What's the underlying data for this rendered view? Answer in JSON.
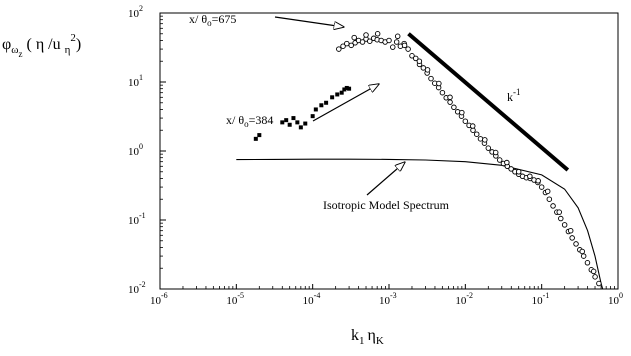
{
  "chart_data": {
    "type": "scatter",
    "x_axis": {
      "scale": "log",
      "range": [
        1e-06,
        1
      ],
      "tick_base": "10",
      "tick_exponents": [
        "-6",
        "-5",
        "-4",
        "-3",
        "-2",
        "-1",
        "0"
      ],
      "label": {
        "main": "k",
        "sub1": "1",
        "mid": "η",
        "sub2": "K"
      }
    },
    "y_axis": {
      "scale": "log",
      "range": [
        0.01,
        100
      ],
      "tick_base": "10",
      "tick_exponents": [
        "-2",
        "-1",
        "0",
        "1",
        "2"
      ],
      "label": {
        "main": "φ",
        "sub1": "ω",
        "sub2": "z",
        "rest1": " ( η /u ",
        "sub3": "η",
        "sup": "2",
        "rest2": ")"
      }
    },
    "grid": false,
    "legend": "none",
    "annotations": {
      "x675": {
        "pre": "x/ θ",
        "sub": "o",
        "post": "=675"
      },
      "x384": {
        "pre": "x/ θ",
        "sub": "o",
        "post": "=384"
      },
      "slope": {
        "pre": "k",
        "sup": "-1"
      },
      "model": {
        "text": "Isotropic Model Spectrum"
      }
    },
    "series": [
      {
        "marker": "open-circle",
        "points": [
          [
            0.00022,
            30
          ],
          [
            0.00025,
            33
          ],
          [
            0.00028,
            36
          ],
          [
            0.00032,
            34
          ],
          [
            0.00036,
            37
          ],
          [
            0.0004,
            40
          ],
          [
            0.00045,
            38
          ],
          [
            0.0005,
            42
          ],
          [
            0.00056,
            39
          ],
          [
            0.00063,
            43
          ],
          [
            0.0007,
            41
          ],
          [
            0.00079,
            40
          ],
          [
            0.00089,
            38
          ],
          [
            0.001,
            40
          ],
          [
            0.00112,
            32
          ],
          [
            0.00126,
            38
          ],
          [
            0.00141,
            33
          ],
          [
            0.00158,
            36
          ],
          [
            0.00178,
            30
          ],
          [
            0.002,
            24
          ],
          [
            0.00224,
            22
          ],
          [
            0.00251,
            18
          ],
          [
            0.00282,
            16
          ],
          [
            0.00316,
            13.5
          ],
          [
            0.00355,
            11.2
          ],
          [
            0.00398,
            9.6
          ],
          [
            0.00447,
            8.3
          ],
          [
            0.00501,
            7
          ],
          [
            0.00562,
            5.9
          ],
          [
            0.00631,
            5.1
          ],
          [
            0.00708,
            4.3
          ],
          [
            0.00794,
            3.7
          ],
          [
            0.00891,
            3.2
          ],
          [
            0.01,
            2.7
          ],
          [
            0.0112,
            2.35
          ],
          [
            0.0126,
            2
          ],
          [
            0.0141,
            1.75
          ],
          [
            0.0158,
            1.5
          ],
          [
            0.0178,
            1.3
          ],
          [
            0.02,
            1.1
          ],
          [
            0.0224,
            0.97
          ],
          [
            0.0251,
            0.85
          ],
          [
            0.0282,
            0.74
          ],
          [
            0.0316,
            0.66
          ],
          [
            0.0355,
            0.6
          ],
          [
            0.0398,
            0.55
          ],
          [
            0.0447,
            0.5
          ],
          [
            0.0501,
            0.46
          ],
          [
            0.0562,
            0.43
          ],
          [
            0.0631,
            0.41
          ],
          [
            0.0708,
            0.4
          ],
          [
            0.0794,
            0.38
          ],
          [
            0.0891,
            0.35
          ],
          [
            0.1,
            0.3
          ],
          [
            0.112,
            0.25
          ],
          [
            0.126,
            0.2
          ],
          [
            0.141,
            0.16
          ],
          [
            0.158,
            0.13
          ],
          [
            0.178,
            0.105
          ],
          [
            0.2,
            0.085
          ],
          [
            0.224,
            0.068
          ],
          [
            0.251,
            0.055
          ],
          [
            0.282,
            0.045
          ],
          [
            0.316,
            0.037
          ],
          [
            0.355,
            0.03
          ],
          [
            0.398,
            0.024
          ],
          [
            0.447,
            0.019
          ],
          [
            0.501,
            0.015
          ],
          [
            0.562,
            0.012
          ],
          [
            0.00035,
            44
          ],
          [
            0.0005,
            48
          ],
          [
            0.00071,
            50
          ],
          [
            0.0013,
            46
          ],
          [
            0.0016,
            34
          ],
          [
            0.0025,
            20
          ],
          [
            0.0032,
            15
          ],
          [
            0.0045,
            9.5
          ],
          [
            0.0063,
            6
          ],
          [
            0.009,
            3.6
          ],
          [
            0.0125,
            2.3
          ],
          [
            0.018,
            1.45
          ],
          [
            0.025,
            0.95
          ],
          [
            0.035,
            0.68
          ],
          [
            0.05,
            0.5
          ],
          [
            0.07,
            0.43
          ],
          [
            0.09,
            0.37
          ],
          [
            0.12,
            0.26
          ],
          [
            0.17,
            0.13
          ],
          [
            0.24,
            0.07
          ],
          [
            0.34,
            0.035
          ],
          [
            0.48,
            0.018
          ]
        ]
      },
      {
        "marker": "filled-square",
        "points": [
          [
            1.8e-05,
            1.5
          ],
          [
            2e-05,
            1.7
          ],
          [
            4e-05,
            2.6
          ],
          [
            4.5e-05,
            2.8
          ],
          [
            5e-05,
            2.4
          ],
          [
            5.6e-05,
            3
          ],
          [
            6.3e-05,
            2.6
          ],
          [
            7e-05,
            2.2
          ],
          [
            8e-05,
            2.5
          ],
          [
            0.0001,
            3.2
          ],
          [
            0.00011,
            4
          ],
          [
            0.00013,
            4.6
          ],
          [
            0.00015,
            5
          ],
          [
            0.00018,
            6
          ],
          [
            0.00021,
            6.6
          ],
          [
            0.00024,
            7
          ],
          [
            0.00026,
            7.8
          ],
          [
            0.00028,
            8.2
          ],
          [
            0.0003,
            8
          ]
        ]
      }
    ],
    "isotropic_model_curve": [
      [
        1e-05,
        0.75
      ],
      [
        3e-05,
        0.755
      ],
      [
        0.0001,
        0.76
      ],
      [
        0.0003,
        0.76
      ],
      [
        0.001,
        0.755
      ],
      [
        0.003,
        0.74
      ],
      [
        0.01,
        0.7
      ],
      [
        0.03,
        0.62
      ],
      [
        0.1,
        0.45
      ],
      [
        0.2,
        0.28
      ],
      [
        0.3,
        0.15
      ],
      [
        0.4,
        0.07
      ],
      [
        0.5,
        0.03
      ],
      [
        0.6,
        0.012
      ],
      [
        0.63,
        0.01
      ]
    ],
    "slope_line": [
      [
        0.0018,
        50
      ],
      [
        0.22,
        0.53
      ]
    ]
  }
}
